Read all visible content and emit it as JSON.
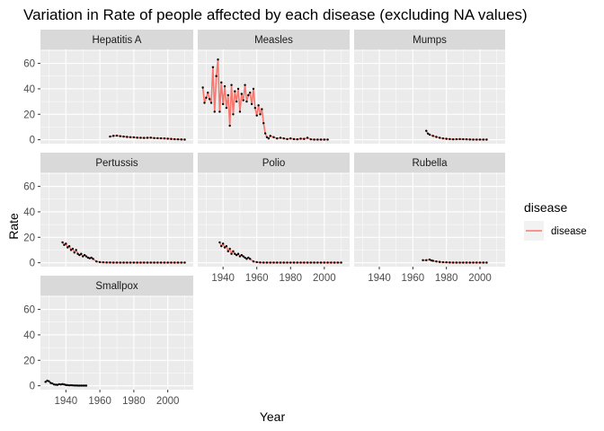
{
  "chart_data": {
    "type": "line",
    "title": "Variation in Rate of people affected by each disease (excluding NA values)",
    "xlabel": "Year",
    "ylabel": "Rate",
    "xlim": [
      1925,
      2015
    ],
    "ylim": [
      -3.1,
      71
    ],
    "x_ticks": [
      1940,
      1960,
      1980,
      2000
    ],
    "y_ticks": [
      0,
      20,
      40,
      60
    ],
    "grid": true,
    "legend": {
      "title": "disease",
      "entries": [
        "disease"
      ],
      "placement": "right",
      "color": "#F8766D"
    },
    "colors": {
      "line": "#F8766D",
      "points": "#000000",
      "panel": "#EBEBEB",
      "strip": "#D9D9D9",
      "grid": "#ffffff"
    },
    "panels": [
      {
        "name": "Hepatitis A",
        "x": [
          1966,
          1968,
          1970,
          1972,
          1974,
          1976,
          1978,
          1980,
          1982,
          1984,
          1986,
          1988,
          1990,
          1992,
          1994,
          1996,
          1998,
          2000,
          2002,
          2004,
          2006,
          2008,
          2010
        ],
        "y": [
          2.5,
          3.0,
          3.2,
          2.8,
          2.5,
          2.2,
          2.0,
          1.9,
          1.6,
          1.5,
          1.4,
          1.5,
          1.6,
          1.3,
          1.2,
          1.1,
          1.0,
          0.8,
          0.6,
          0.4,
          0.3,
          0.2,
          0.1
        ]
      },
      {
        "name": "Measles",
        "x": [
          1928,
          1929,
          1930,
          1931,
          1932,
          1933,
          1934,
          1935,
          1936,
          1937,
          1938,
          1939,
          1940,
          1941,
          1942,
          1943,
          1944,
          1945,
          1946,
          1947,
          1948,
          1949,
          1950,
          1951,
          1952,
          1953,
          1954,
          1955,
          1956,
          1957,
          1958,
          1959,
          1960,
          1961,
          1962,
          1963,
          1964,
          1965,
          1966,
          1967,
          1968,
          1970,
          1972,
          1974,
          1976,
          1978,
          1980,
          1982,
          1984,
          1986,
          1988,
          1990,
          1992,
          1994,
          1996,
          1998,
          2000,
          2002
        ],
        "y": [
          41,
          29,
          33,
          37,
          32,
          29,
          57,
          22,
          50,
          63,
          22,
          45,
          28,
          42,
          25,
          35,
          11,
          43,
          20,
          38,
          30,
          40,
          22,
          36,
          31,
          43,
          30,
          35,
          37,
          28,
          40,
          25,
          19,
          27,
          20,
          24,
          13,
          5,
          2,
          1,
          3,
          2,
          1,
          1.5,
          1,
          0.5,
          1,
          0.5,
          0.3,
          0.8,
          0.6,
          1.5,
          0.3,
          0.1,
          0.1,
          0.1,
          0.1,
          0.1
        ]
      },
      {
        "name": "Mumps",
        "x": [
          1968,
          1969,
          1970,
          1972,
          1974,
          1976,
          1978,
          1980,
          1982,
          1984,
          1986,
          1988,
          1990,
          1992,
          1994,
          1996,
          1998,
          2000,
          2002,
          2004
        ],
        "y": [
          7,
          4.8,
          4,
          3,
          2.2,
          1.5,
          1.0,
          0.7,
          0.5,
          0.3,
          0.4,
          0.5,
          0.4,
          0.3,
          0.2,
          0.1,
          0.1,
          0.1,
          0.1,
          0.1
        ]
      },
      {
        "name": "Pertussis",
        "x": [
          1938,
          1939,
          1940,
          1941,
          1942,
          1943,
          1944,
          1945,
          1946,
          1947,
          1948,
          1949,
          1950,
          1951,
          1952,
          1953,
          1954,
          1955,
          1956,
          1958,
          1960,
          1962,
          1964,
          1966,
          1968,
          1970,
          1972,
          1974,
          1976,
          1978,
          1980,
          1982,
          1984,
          1986,
          1988,
          1990,
          1992,
          1994,
          1996,
          1998,
          2000,
          2002,
          2004,
          2006,
          2008,
          2010
        ],
        "y": [
          16,
          14,
          15,
          12,
          13,
          10,
          11,
          8,
          10,
          7,
          6,
          7,
          5,
          6,
          5,
          4,
          3.5,
          4,
          3,
          1,
          0.5,
          0.3,
          0.2,
          0.2,
          0.1,
          0.1,
          0.1,
          0.1,
          0.1,
          0.1,
          0.1,
          0.1,
          0.1,
          0.1,
          0.1,
          0.1,
          0.1,
          0.1,
          0.1,
          0.1,
          0.1,
          0.1,
          0.1,
          0.1,
          0.1,
          0.1
        ]
      },
      {
        "name": "Polio",
        "x": [
          1938,
          1939,
          1940,
          1941,
          1942,
          1943,
          1944,
          1945,
          1946,
          1947,
          1948,
          1949,
          1950,
          1951,
          1952,
          1953,
          1954,
          1955,
          1956,
          1958,
          1960,
          1962,
          1964,
          1966,
          1968,
          1970,
          1972,
          1974,
          1976,
          1978,
          1980,
          1982,
          1984,
          1986,
          1988,
          1990,
          1992,
          1994,
          1996,
          1998,
          2000,
          2002,
          2004,
          2006,
          2008,
          2010
        ],
        "y": [
          16,
          13,
          15,
          12,
          13,
          9,
          11,
          7,
          9,
          7,
          6,
          7,
          5,
          6,
          5,
          4,
          3,
          4,
          3,
          1,
          0.5,
          0.2,
          0.1,
          0.1,
          0.1,
          0.1,
          0.1,
          0.1,
          0.1,
          0.1,
          0.1,
          0.1,
          0.1,
          0.1,
          0.1,
          0.1,
          0.1,
          0.1,
          0.1,
          0.1,
          0.1,
          0.1,
          0.1,
          0.1,
          0.1,
          0.1
        ]
      },
      {
        "name": "Rubella",
        "x": [
          1966,
          1968,
          1970,
          1971,
          1972,
          1974,
          1976,
          1978,
          1980,
          1982,
          1984,
          1986,
          1988,
          1990,
          1992,
          1994,
          1996,
          1998,
          2000,
          2002,
          2004
        ],
        "y": [
          2,
          2,
          2.5,
          1.8,
          1.5,
          1,
          0.6,
          0.4,
          0.3,
          0.2,
          0.1,
          0.1,
          0.1,
          0.1,
          0.1,
          0.1,
          0.1,
          0.1,
          0.1,
          0.1,
          0.1
        ]
      },
      {
        "name": "Smallpox",
        "x": [
          1928,
          1929,
          1930,
          1931,
          1932,
          1933,
          1934,
          1935,
          1936,
          1937,
          1938,
          1939,
          1940,
          1941,
          1942,
          1943,
          1944,
          1945,
          1946,
          1947,
          1948,
          1949,
          1950,
          1951,
          1952
        ],
        "y": [
          3,
          4,
          3.5,
          2.2,
          1.8,
          1.0,
          0.8,
          0.7,
          1.2,
          1.0,
          1.3,
          1.0,
          0.6,
          0.5,
          0.3,
          0.4,
          0.3,
          0.2,
          0.2,
          0.1,
          0.1,
          0.1,
          0.1,
          0.1,
          0.1
        ]
      }
    ]
  }
}
